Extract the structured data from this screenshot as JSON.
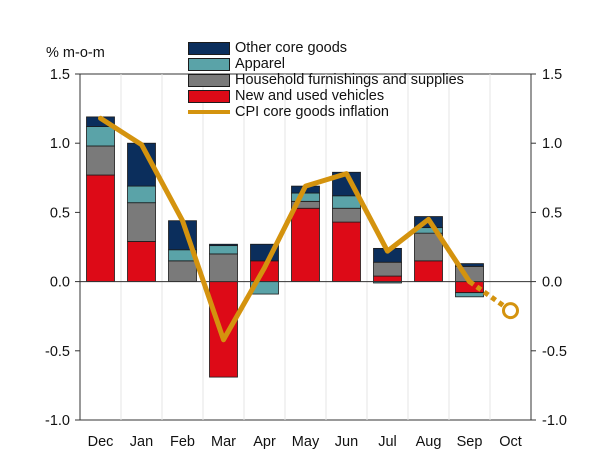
{
  "chart_data": {
    "type": "bar",
    "subtype": "stacked bar with line overlay",
    "ylabel": "% m-o-m",
    "ylim": [
      -1.0,
      1.5
    ],
    "y_ticks": [
      "1.5",
      "1.0",
      "0.5",
      "0.0",
      "-0.5",
      "-1.0"
    ],
    "y_tick_values": [
      1.5,
      1.0,
      0.5,
      0.0,
      -0.5,
      -1.0
    ],
    "right_axis_mirrored": true,
    "grid": false,
    "legend_position": "top-center",
    "categories": [
      "Dec",
      "Jan",
      "Feb",
      "Mar",
      "Apr",
      "May",
      "Jun",
      "Jul",
      "Aug",
      "Sep",
      "Oct"
    ],
    "series": [
      {
        "name": "New and used vehicles",
        "color": "#dd0a17",
        "values": [
          0.77,
          0.29,
          0.0,
          -0.69,
          0.15,
          0.53,
          0.43,
          0.04,
          0.15,
          -0.08,
          null
        ]
      },
      {
        "name": "Household furnishings and supplies",
        "color": "#7a7a7a",
        "values": [
          0.21,
          0.28,
          0.15,
          0.2,
          0.0,
          0.05,
          0.1,
          0.1,
          0.2,
          0.11,
          null
        ]
      },
      {
        "name": "Apparel",
        "color": "#5aa3a8",
        "values": [
          0.14,
          0.12,
          0.08,
          0.06,
          -0.09,
          0.06,
          0.09,
          -0.01,
          0.04,
          -0.03,
          null
        ]
      },
      {
        "name": "Other core goods",
        "color": "#0b2e5c",
        "values": [
          0.07,
          0.31,
          0.21,
          0.01,
          0.12,
          0.05,
          0.17,
          0.1,
          0.08,
          0.02,
          null
        ]
      }
    ],
    "line": {
      "name": "CPI core goods inflation",
      "color": "#d4930e",
      "values": [
        1.18,
        0.99,
        0.44,
        -0.42,
        0.1,
        0.69,
        0.78,
        0.22,
        0.45,
        0.0,
        -0.21
      ]
    },
    "forecast_marker": {
      "category": "Oct",
      "value": -0.21
    }
  },
  "legend": {
    "items": [
      {
        "label": "Other core goods",
        "color": "#0b2e5c",
        "kind": "bar"
      },
      {
        "label": "Apparel",
        "color": "#5aa3a8",
        "kind": "bar"
      },
      {
        "label": "Household furnishings and supplies",
        "color": "#7a7a7a",
        "kind": "bar"
      },
      {
        "label": "New and used vehicles",
        "color": "#dd0a17",
        "kind": "bar"
      },
      {
        "label": "CPI core goods inflation",
        "color": "#d4930e",
        "kind": "line"
      }
    ]
  }
}
